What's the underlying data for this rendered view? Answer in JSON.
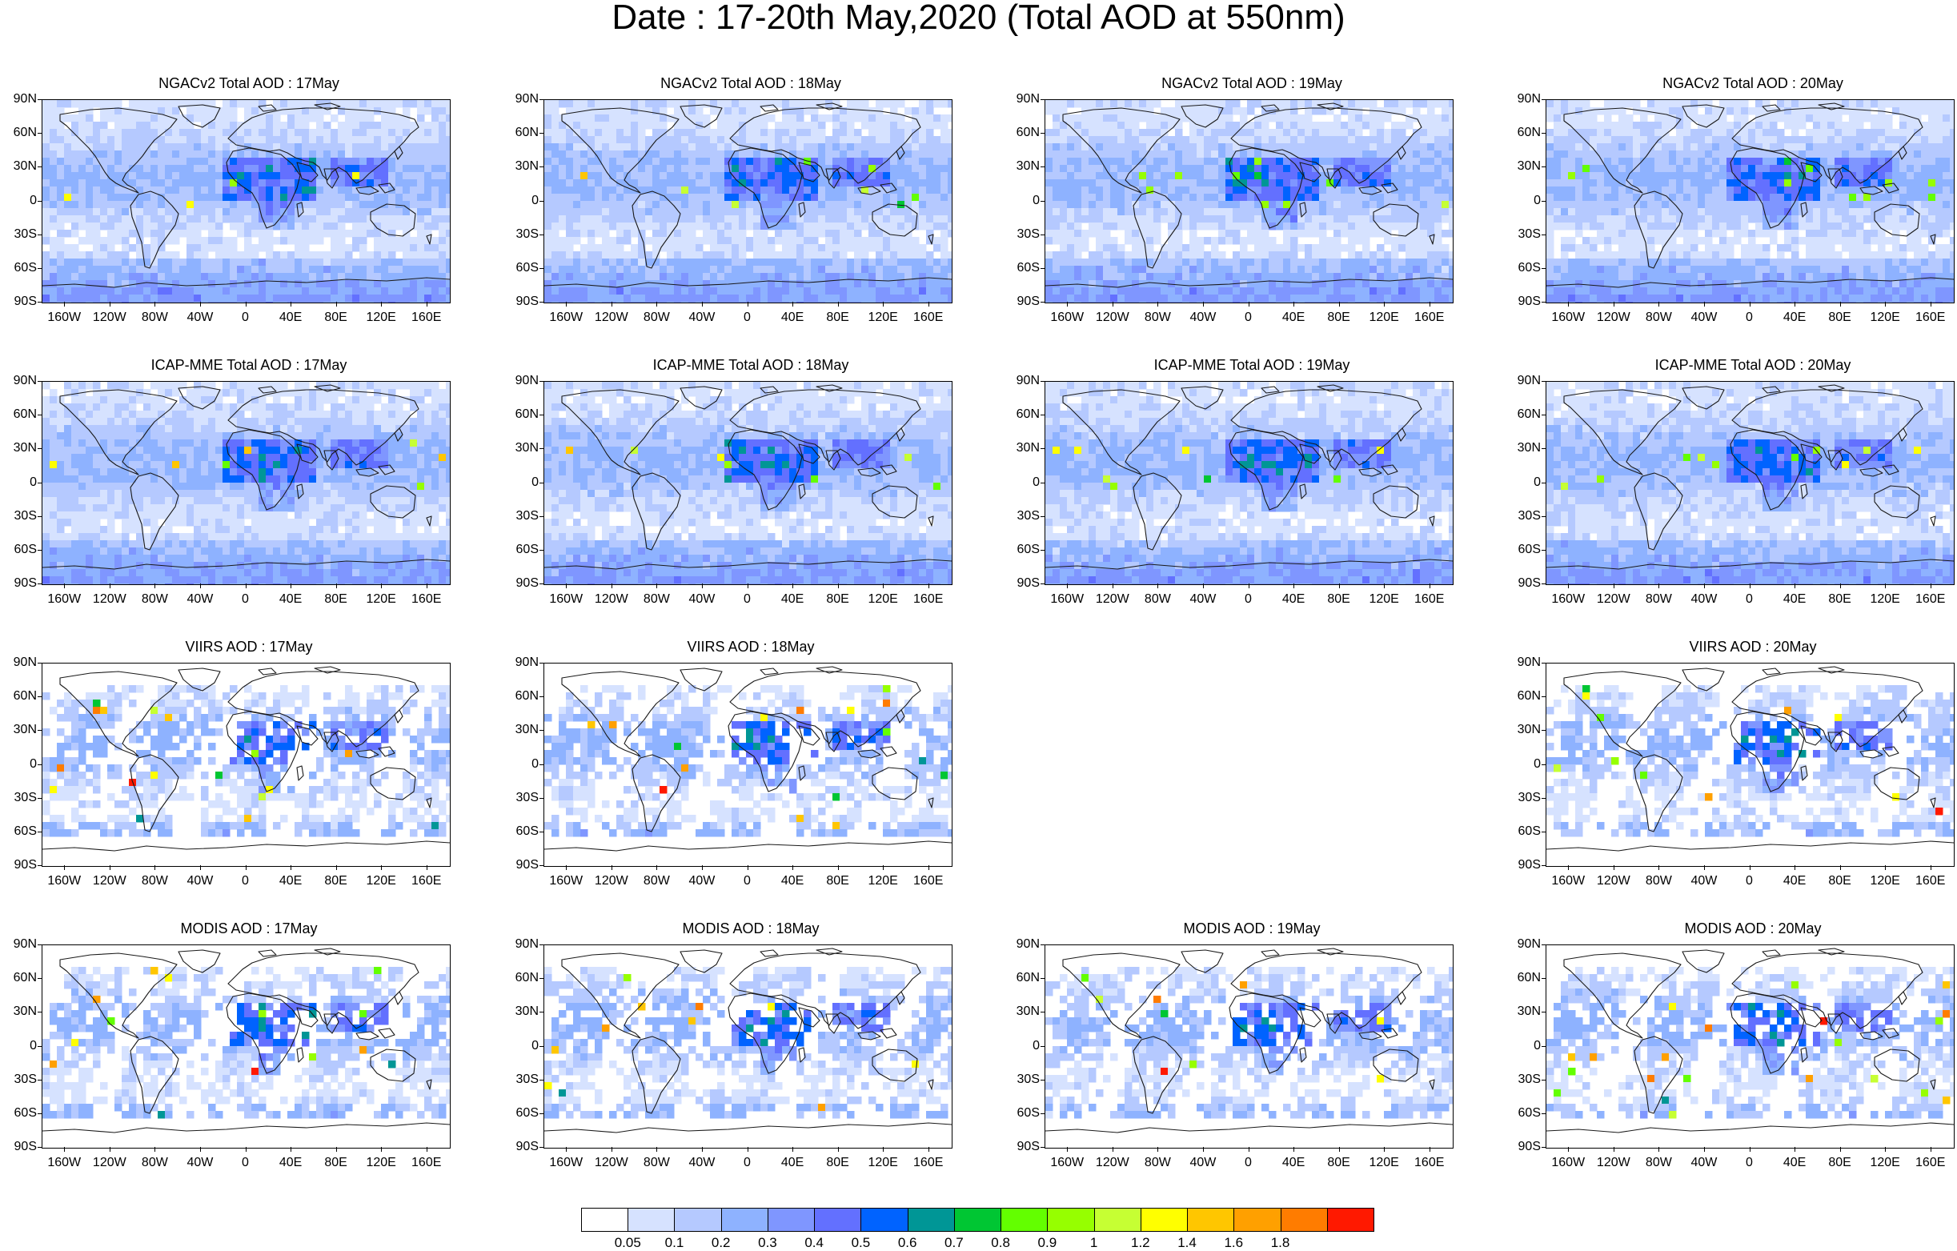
{
  "title": "Date : 17-20th May,2020 (Total AOD at 550nm)",
  "axes": {
    "lat_labels": [
      "90N",
      "60N",
      "30N",
      "0",
      "30S",
      "60S",
      "90S"
    ],
    "lon_labels": [
      "160W",
      "120W",
      "80W",
      "40W",
      "0",
      "40E",
      "80E",
      "120E",
      "160E"
    ],
    "lat_values": [
      90,
      60,
      30,
      0,
      -30,
      -60,
      -90
    ],
    "lon_values": [
      -160,
      -120,
      -80,
      -40,
      0,
      40,
      80,
      120,
      160
    ],
    "lon_range": [
      -180,
      180
    ],
    "lat_range": [
      -90,
      90
    ]
  },
  "panels": [
    {
      "id": "ngac-17",
      "title": "NGACv2 Total AOD : 17May",
      "product": "model",
      "row": 0,
      "col": 0
    },
    {
      "id": "ngac-18",
      "title": "NGACv2 Total AOD : 18May",
      "product": "model",
      "row": 0,
      "col": 1
    },
    {
      "id": "ngac-19",
      "title": "NGACv2 Total AOD : 19May",
      "product": "model",
      "row": 0,
      "col": 2
    },
    {
      "id": "ngac-20",
      "title": "NGACv2 Total AOD : 20May",
      "product": "model",
      "row": 0,
      "col": 3
    },
    {
      "id": "icap-17",
      "title": "ICAP-MME Total AOD : 17May",
      "product": "model",
      "row": 1,
      "col": 0
    },
    {
      "id": "icap-18",
      "title": "ICAP-MME Total AOD : 18May",
      "product": "model",
      "row": 1,
      "col": 1
    },
    {
      "id": "icap-19",
      "title": "ICAP-MME Total AOD : 19May",
      "product": "model",
      "row": 1,
      "col": 2
    },
    {
      "id": "icap-20",
      "title": "ICAP-MME Total AOD : 20May",
      "product": "model",
      "row": 1,
      "col": 3
    },
    {
      "id": "viirs-17",
      "title": "VIIRS AOD : 17May",
      "product": "satellite",
      "row": 2,
      "col": 0
    },
    {
      "id": "viirs-18",
      "title": "VIIRS AOD : 18May",
      "product": "satellite",
      "row": 2,
      "col": 1
    },
    {
      "id": "viirs-20",
      "title": "VIIRS AOD : 20May",
      "product": "satellite",
      "row": 2,
      "col": 3
    },
    {
      "id": "modis-17",
      "title": "MODIS AOD : 17May",
      "product": "satellite",
      "row": 3,
      "col": 0
    },
    {
      "id": "modis-18",
      "title": "MODIS AOD : 18May",
      "product": "satellite",
      "row": 3,
      "col": 1
    },
    {
      "id": "modis-19",
      "title": "MODIS AOD : 19May",
      "product": "satellite",
      "row": 3,
      "col": 2
    },
    {
      "id": "modis-20",
      "title": "MODIS AOD : 20May",
      "product": "satellite",
      "row": 3,
      "col": 3
    }
  ],
  "colorbar": {
    "tick_labels": [
      "0.05",
      "0.1",
      "0.2",
      "0.3",
      "0.4",
      "0.5",
      "0.6",
      "0.7",
      "0.8",
      "0.9",
      "1",
      "1.2",
      "1.4",
      "1.6",
      "1.8"
    ],
    "colors": [
      "#ffffff",
      "#d6e2ff",
      "#b5c9ff",
      "#8eb2ff",
      "#7f96ff",
      "#6370ff",
      "#0063ff",
      "#009696",
      "#00c633",
      "#63ff00",
      "#96ff00",
      "#c6ff33",
      "#ffff00",
      "#ffc600",
      "#ffa000",
      "#ff7c00",
      "#ff1900"
    ]
  }
}
